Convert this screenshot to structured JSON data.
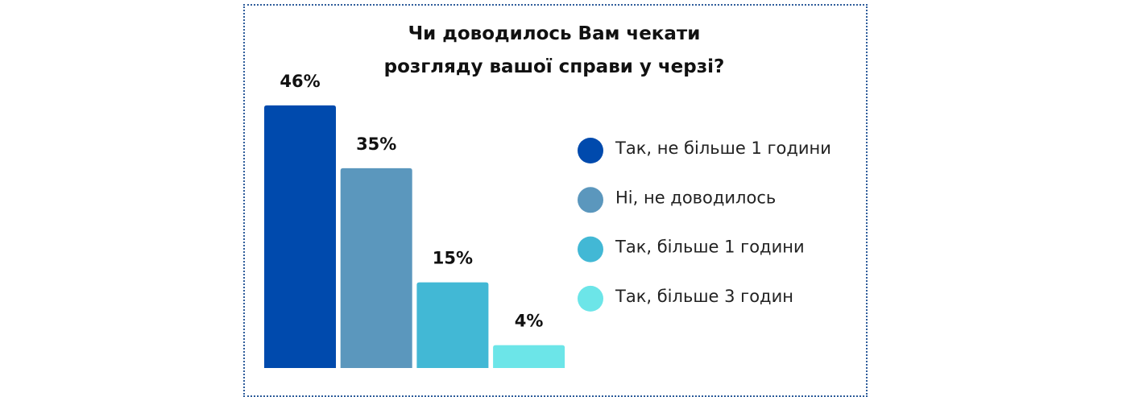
{
  "chart_data": {
    "type": "bar",
    "title": "Чи доводилось Вам чекати розгляду вашої справи у черзі?",
    "categories": [
      "Так, не більше 1 години",
      "Ні, не доводилось",
      "Так, більше 1 години",
      "Так, більше 3 годин"
    ],
    "values": [
      46,
      35,
      15,
      4
    ],
    "value_labels": [
      "46%",
      "35%",
      "15%",
      "4%"
    ],
    "colors": [
      "#004aad",
      "#5b97bd",
      "#42b8d5",
      "#6ce5e8"
    ],
    "legend": "right"
  }
}
